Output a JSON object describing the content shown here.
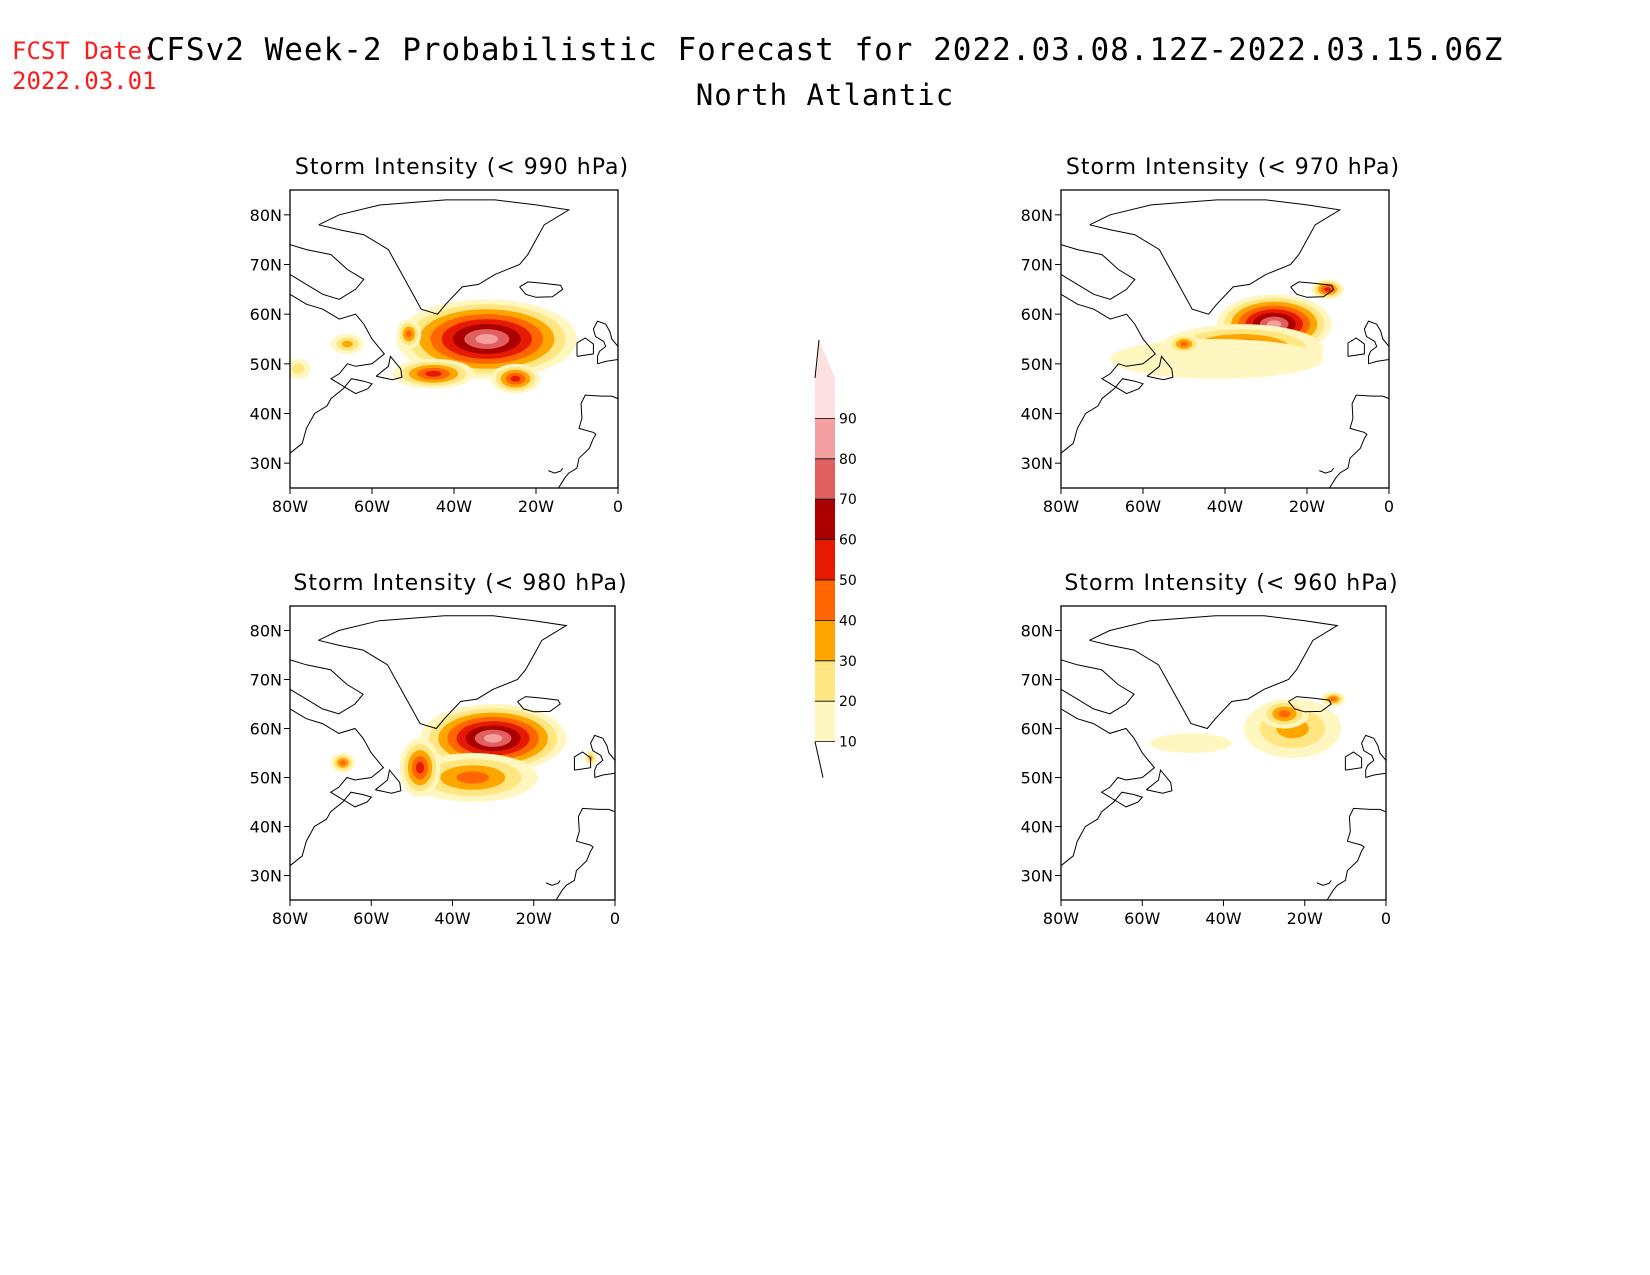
{
  "header": {
    "fcst_label": "FCST Date:",
    "fcst_date": "2022.03.01",
    "title": "CFSv2 Week-2 Probabilistic Forecast for 2022.03.08.12Z-2022.03.15.06Z",
    "subtitle": "North Atlantic"
  },
  "axes": {
    "x_ticks": [
      "80W",
      "60W",
      "40W",
      "20W",
      "0"
    ],
    "y_ticks": [
      "80N",
      "70N",
      "60N",
      "50N",
      "40N",
      "30N"
    ],
    "lon_range": [
      -80,
      0
    ],
    "lat_range": [
      25,
      85
    ]
  },
  "panels": [
    {
      "title": "Storm Intensity (< 990 hPa)"
    },
    {
      "title": "Storm Intensity (< 970 hPa)"
    },
    {
      "title": "Storm Intensity (< 980 hPa)"
    },
    {
      "title": "Storm Intensity (< 960 hPa)"
    }
  ],
  "colorbar": {
    "levels": [
      "10",
      "20",
      "30",
      "40",
      "50",
      "60",
      "70",
      "80",
      "90"
    ],
    "colors": [
      "#fff7bf",
      "#ffe680",
      "#ffa500",
      "#ff6600",
      "#e61a00",
      "#aa0000",
      "#e06060",
      "#f4a0a0",
      "#ffe0e0"
    ]
  },
  "chart_data": {
    "type": "heatmap",
    "x_unit": "longitude",
    "y_unit": "latitude",
    "panels": [
      {
        "threshold_hPa": 990,
        "blobs": [
          {
            "lon": -32,
            "lat": 55,
            "rx": 22,
            "ry": 8,
            "level": 8
          },
          {
            "lon": -45,
            "lat": 48,
            "rx": 10,
            "ry": 3,
            "level": 5
          },
          {
            "lon": -25,
            "lat": 47,
            "rx": 6,
            "ry": 3,
            "level": 5
          },
          {
            "lon": -51,
            "lat": 56,
            "rx": 3,
            "ry": 3,
            "level": 4
          },
          {
            "lon": -66,
            "lat": 54,
            "rx": 4,
            "ry": 2,
            "level": 3
          },
          {
            "lon": -78,
            "lat": 49,
            "rx": 3,
            "ry": 2,
            "level": 2
          }
        ]
      },
      {
        "threshold_hPa": 970,
        "blobs": [
          {
            "lon": -28,
            "lat": 58,
            "rx": 14,
            "ry": 6,
            "level": 8
          },
          {
            "lon": -36,
            "lat": 53,
            "rx": 20,
            "ry": 5,
            "level": 5
          },
          {
            "lon": -42,
            "lat": 51,
            "rx": 26,
            "ry": 4,
            "level": 1
          },
          {
            "lon": -15,
            "lat": 65,
            "rx": 4,
            "ry": 2,
            "level": 5
          },
          {
            "lon": -50,
            "lat": 54,
            "rx": 4,
            "ry": 2,
            "level": 4
          }
        ]
      },
      {
        "threshold_hPa": 980,
        "blobs": [
          {
            "lon": -30,
            "lat": 58,
            "rx": 18,
            "ry": 7,
            "level": 8
          },
          {
            "lon": -35,
            "lat": 50,
            "rx": 16,
            "ry": 5,
            "level": 4
          },
          {
            "lon": -48,
            "lat": 52,
            "rx": 5,
            "ry": 6,
            "level": 5
          },
          {
            "lon": -67,
            "lat": 53,
            "rx": 3,
            "ry": 2,
            "level": 4
          },
          {
            "lon": -6,
            "lat": 54,
            "rx": 1.5,
            "ry": 1.5,
            "level": 3
          }
        ]
      },
      {
        "threshold_hPa": 960,
        "blobs": [
          {
            "lon": -23,
            "lat": 60,
            "rx": 12,
            "ry": 6,
            "level": 3
          },
          {
            "lon": -25,
            "lat": 63,
            "rx": 6,
            "ry": 3,
            "level": 4
          },
          {
            "lon": -48,
            "lat": 57,
            "rx": 10,
            "ry": 2,
            "level": 1
          },
          {
            "lon": -13,
            "lat": 66,
            "rx": 3,
            "ry": 1.5,
            "level": 4
          }
        ]
      }
    ]
  }
}
